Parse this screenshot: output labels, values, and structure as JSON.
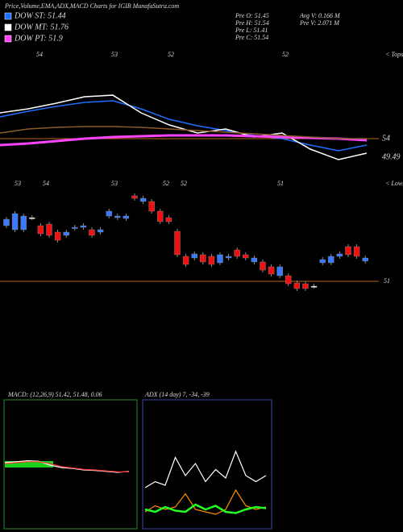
{
  "chart_data": {
    "type": "candlestick",
    "title": "Price,Volume,EMA,ADX,MACD Charts for IGIB MunafaSutra.com",
    "legend": [
      {
        "name": "DOW ST: 51.44",
        "color": "#1e6fff"
      },
      {
        "name": "DOW MT: 51.76",
        "color": "#ffffff"
      },
      {
        "name": "DOW PT: 51.9",
        "color": "#ff44ff"
      }
    ],
    "info": [
      "Pre  O: 51.45",
      "Pre  H: 51.54",
      "Pre  L: 51.41",
      "Pre  C: 51.54",
      "Avg V: 0.166  M",
      "Pre  V: 2.071 M"
    ],
    "top_labels": [
      "54",
      "53",
      "52",
      "52",
      "< Tops"
    ],
    "low_labels": [
      "53",
      "54",
      "53",
      "52",
      "52",
      "51",
      "< Lows"
    ],
    "ema_levels": [
      {
        "value": 54,
        "label": "54"
      },
      {
        "value": 49.49,
        "label": "49.49"
      }
    ],
    "ema_series": [
      {
        "color": "#1e6fff",
        "values": [
          59.29,
          60.66,
          61.84,
          62.82,
          63.21,
          61.25,
          58.7,
          57.14,
          55.96,
          54.78,
          54.0,
          52.43,
          51.06,
          52.43
        ]
      },
      {
        "color": "#ffffff",
        "values": [
          60.27,
          61.25,
          62.62,
          64.19,
          64.57,
          60.27,
          57.33,
          55.37,
          56.35,
          54.39,
          55.37,
          51.45,
          48.9,
          50.47
        ]
      },
      {
        "color": "#ff44ff",
        "values": [
          52.43,
          52.82,
          53.41,
          54.0,
          54.39,
          54.59,
          54.78,
          54.78,
          54.78,
          54.59,
          54.39,
          54.2,
          54.0,
          53.61
        ]
      },
      {
        "color": "#8b5a2b",
        "values": [
          55.37,
          56.35,
          56.74,
          56.94,
          56.94,
          56.74,
          56.35,
          55.96,
          55.57,
          55.18,
          54.78,
          54.39,
          54.0,
          54.0
        ]
      }
    ],
    "price_level": {
      "value": 51,
      "label": "51"
    },
    "ylim": [
      50.5,
      55.5
    ],
    "candles": [
      {
        "open": 53.76,
        "close": 54.08
      },
      {
        "open": 53.56,
        "close": 54.36
      },
      {
        "open": 53.56,
        "close": 54.24
      },
      {
        "open": 54.16,
        "close": 54.16
      },
      {
        "open": 53.76,
        "close": 53.36
      },
      {
        "open": 53.84,
        "close": 53.28
      },
      {
        "open": 53.44,
        "close": 53.04
      },
      {
        "open": 53.28,
        "close": 53.44
      },
      {
        "open": 53.64,
        "close": 53.68
      },
      {
        "open": 53.68,
        "close": 53.76
      },
      {
        "open": 53.56,
        "close": 53.28
      },
      {
        "open": 53.44,
        "close": 53.56
      },
      {
        "open": 54.24,
        "close": 54.48
      },
      {
        "open": 54.16,
        "close": 54.24
      },
      {
        "open": 54.12,
        "close": 54.24
      },
      {
        "open": 55.24,
        "close": 55.12
      },
      {
        "open": 54.96,
        "close": 55.12
      },
      {
        "open": 54.96,
        "close": 54.48
      },
      {
        "open": 54.48,
        "close": 53.96
      },
      {
        "open": 54.16,
        "close": 53.96
      },
      {
        "open": 53.48,
        "close": 52.32
      },
      {
        "open": 52.24,
        "close": 51.84
      },
      {
        "open": 52.16,
        "close": 52.36
      },
      {
        "open": 52.32,
        "close": 51.96
      },
      {
        "open": 52.24,
        "close": 51.84
      },
      {
        "open": 51.92,
        "close": 52.32
      },
      {
        "open": 52.16,
        "close": 52.24
      },
      {
        "open": 52.56,
        "close": 52.24
      },
      {
        "open": 52.32,
        "close": 52.16
      },
      {
        "open": 51.96,
        "close": 52.16
      },
      {
        "open": 51.96,
        "close": 51.56
      },
      {
        "open": 51.72,
        "close": 51.36
      },
      {
        "open": 51.28,
        "close": 51.72
      },
      {
        "open": 51.28,
        "close": 50.88
      },
      {
        "open": 50.92,
        "close": 50.64
      },
      {
        "open": 50.88,
        "close": 50.64
      },
      {
        "open": 50.76,
        "close": 50.76
      },
      {
        "open": 51.92,
        "close": 52.08
      },
      {
        "open": 51.92,
        "close": 52.24
      },
      {
        "open": 52.24,
        "close": 52.36
      },
      {
        "open": 52.72,
        "close": 52.32
      },
      {
        "open": 52.72,
        "close": 52.24
      },
      {
        "open": 52.0,
        "close": 52.16
      }
    ],
    "macd_title": "MACD: (12,26,9) 51.42, 51.48, 0.06",
    "macd_ylim": [
      -1,
      1
    ],
    "macd_series": [
      {
        "color": "#ffffff",
        "values": [
          0.1,
          0.12,
          0.14,
          0.13,
          0.05,
          0.0,
          -0.02,
          -0.05,
          -0.06,
          -0.08,
          -0.1,
          -0.08
        ]
      },
      {
        "color": "#ff3333",
        "values": [
          0.08,
          0.1,
          0.12,
          0.12,
          0.08,
          0.02,
          -0.01,
          -0.04,
          -0.05,
          -0.07,
          -0.09,
          -0.09
        ]
      }
    ],
    "adx_title": "ADX (14 day) 7, -34, -39",
    "adx_ylim": [
      0,
      100
    ],
    "adx_series": [
      {
        "color": "#ffffff",
        "values": [
          30,
          35,
          32,
          55,
          40,
          50,
          35,
          45,
          38,
          60,
          40,
          35,
          40
        ]
      },
      {
        "color": "#ff8c00",
        "values": [
          10,
          15,
          12,
          14,
          25,
          12,
          10,
          8,
          12,
          28,
          15,
          12,
          14
        ]
      },
      {
        "color": "#22ff22",
        "values": [
          12,
          10,
          14,
          11,
          10,
          16,
          12,
          15,
          10,
          9,
          12,
          14,
          13
        ]
      }
    ]
  }
}
